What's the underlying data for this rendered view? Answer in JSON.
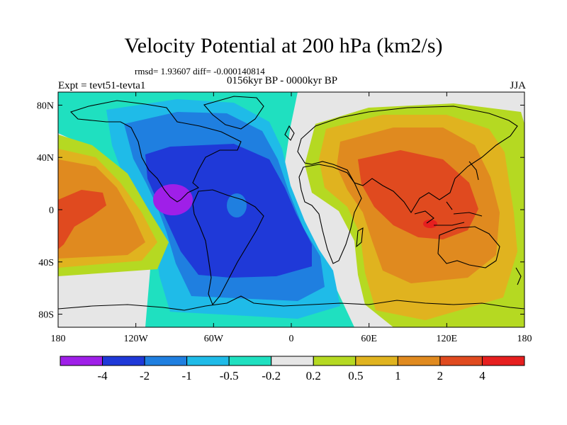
{
  "title": "Velocity Potential at 200 hPa (km2/s)",
  "stats": "rmsd= 1.93607 diff= -0.000140814",
  "period": "0156kyr BP - 0000kyr BP",
  "experiment": "Expt = tevt51-tevta1",
  "season": "JJA",
  "lat_ticks": [
    "80N",
    "40N",
    "0",
    "40S",
    "80S"
  ],
  "lon_ticks": [
    "180",
    "120W",
    "60W",
    "0",
    "60E",
    "120E",
    "180"
  ],
  "colorbar": {
    "colors": [
      "#9f1fe8",
      "#1f39d8",
      "#1f7fe0",
      "#1fbbe8",
      "#1fe0c0",
      "#e6e6e6",
      "#b5d922",
      "#e0b31f",
      "#e08a1f",
      "#e04a1f",
      "#e61f1f"
    ],
    "labels": [
      "-4",
      "-2",
      "-1",
      "-0.5",
      "-0.2",
      "0.2",
      "0.5",
      "1",
      "2",
      "4"
    ]
  }
}
